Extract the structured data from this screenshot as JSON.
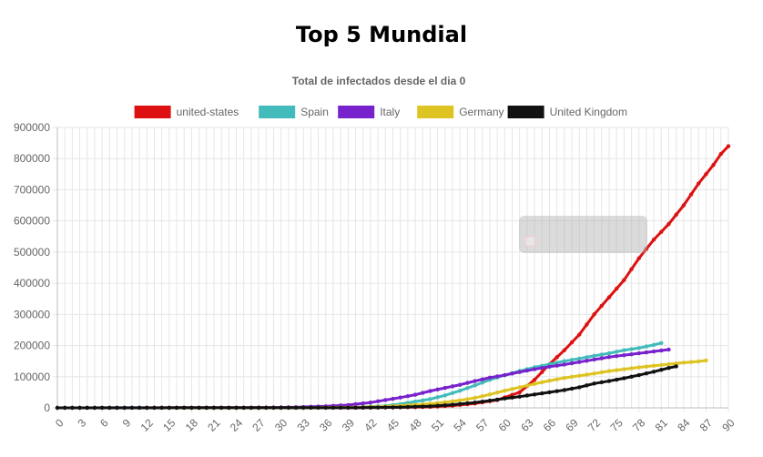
{
  "page": {
    "title": "Top 5 Mundial"
  },
  "chart_data": {
    "type": "line",
    "title": "Total de infectados desde el dia 0",
    "xlim": [
      0,
      90
    ],
    "ylim": [
      0,
      900000
    ],
    "x_ticks": [
      0,
      3,
      6,
      9,
      12,
      15,
      18,
      21,
      24,
      27,
      30,
      33,
      36,
      39,
      42,
      45,
      48,
      51,
      54,
      57,
      60,
      63,
      66,
      69,
      72,
      75,
      78,
      81,
      84,
      87,
      90
    ],
    "y_ticks": [
      0,
      100000,
      200000,
      300000,
      400000,
      500000,
      600000,
      700000,
      800000,
      900000
    ],
    "grid": true,
    "legend_position": "top",
    "series": [
      {
        "name": "united-states",
        "color": "#dd1111",
        "points": [
          [
            0,
            0
          ],
          [
            30,
            200
          ],
          [
            40,
            500
          ],
          [
            46,
            1500
          ],
          [
            50,
            3000
          ],
          [
            53,
            7000
          ],
          [
            56,
            14000
          ],
          [
            59,
            25000
          ],
          [
            62,
            50000
          ],
          [
            64,
            90000
          ],
          [
            66,
            140000
          ],
          [
            68,
            185000
          ],
          [
            70,
            235000
          ],
          [
            72,
            300000
          ],
          [
            74,
            355000
          ],
          [
            76,
            410000
          ],
          [
            78,
            480000
          ],
          [
            80,
            540000
          ],
          [
            82,
            590000
          ],
          [
            84,
            650000
          ],
          [
            86,
            720000
          ],
          [
            88,
            780000
          ],
          [
            89,
            815000
          ],
          [
            90,
            840000
          ]
        ]
      },
      {
        "name": "Spain",
        "color": "#44bbbb",
        "points": [
          [
            0,
            0
          ],
          [
            30,
            100
          ],
          [
            36,
            1000
          ],
          [
            40,
            2000
          ],
          [
            44,
            6000
          ],
          [
            46,
            12000
          ],
          [
            48,
            20000
          ],
          [
            50,
            28000
          ],
          [
            52,
            40000
          ],
          [
            54,
            55000
          ],
          [
            56,
            72000
          ],
          [
            58,
            90000
          ],
          [
            60,
            105000
          ],
          [
            62,
            118000
          ],
          [
            64,
            130000
          ],
          [
            66,
            140000
          ],
          [
            68,
            150000
          ],
          [
            70,
            158000
          ],
          [
            72,
            167000
          ],
          [
            74,
            175000
          ],
          [
            76,
            185000
          ],
          [
            78,
            192000
          ],
          [
            80,
            202000
          ],
          [
            81,
            208000
          ]
        ]
      },
      {
        "name": "Italy",
        "color": "#7722cc",
        "points": [
          [
            0,
            0
          ],
          [
            28,
            1000
          ],
          [
            32,
            2000
          ],
          [
            36,
            5000
          ],
          [
            39,
            9000
          ],
          [
            42,
            17000
          ],
          [
            44,
            25000
          ],
          [
            46,
            33000
          ],
          [
            48,
            42000
          ],
          [
            50,
            54000
          ],
          [
            52,
            64000
          ],
          [
            54,
            74000
          ],
          [
            56,
            86000
          ],
          [
            58,
            97000
          ],
          [
            60,
            105000
          ],
          [
            62,
            115000
          ],
          [
            64,
            124000
          ],
          [
            66,
            132000
          ],
          [
            68,
            139000
          ],
          [
            70,
            147000
          ],
          [
            72,
            155000
          ],
          [
            74,
            163000
          ],
          [
            76,
            169000
          ],
          [
            78,
            175000
          ],
          [
            80,
            181000
          ],
          [
            82,
            187000
          ]
        ]
      },
      {
        "name": "Germany",
        "color": "#ddc422",
        "points": [
          [
            0,
            0
          ],
          [
            34,
            500
          ],
          [
            40,
            1500
          ],
          [
            44,
            4000
          ],
          [
            47,
            8000
          ],
          [
            50,
            13000
          ],
          [
            52,
            18000
          ],
          [
            54,
            24000
          ],
          [
            56,
            32000
          ],
          [
            58,
            43000
          ],
          [
            60,
            55000
          ],
          [
            62,
            66000
          ],
          [
            64,
            77000
          ],
          [
            66,
            87000
          ],
          [
            68,
            96000
          ],
          [
            70,
            103000
          ],
          [
            72,
            110000
          ],
          [
            74,
            118000
          ],
          [
            76,
            124000
          ],
          [
            78,
            130000
          ],
          [
            80,
            135000
          ],
          [
            82,
            140000
          ],
          [
            84,
            145000
          ],
          [
            86,
            149000
          ],
          [
            87,
            152000
          ]
        ]
      },
      {
        "name": "United Kingdom",
        "color": "#111111",
        "points": [
          [
            0,
            0
          ],
          [
            40,
            500
          ],
          [
            46,
            2000
          ],
          [
            50,
            5000
          ],
          [
            53,
            10000
          ],
          [
            56,
            17000
          ],
          [
            58,
            23000
          ],
          [
            60,
            30000
          ],
          [
            62,
            36000
          ],
          [
            64,
            43000
          ],
          [
            66,
            50000
          ],
          [
            68,
            57000
          ],
          [
            70,
            66000
          ],
          [
            72,
            78000
          ],
          [
            74,
            86000
          ],
          [
            76,
            95000
          ],
          [
            78,
            105000
          ],
          [
            80,
            116000
          ],
          [
            82,
            128000
          ],
          [
            83,
            133000
          ]
        ]
      }
    ]
  }
}
